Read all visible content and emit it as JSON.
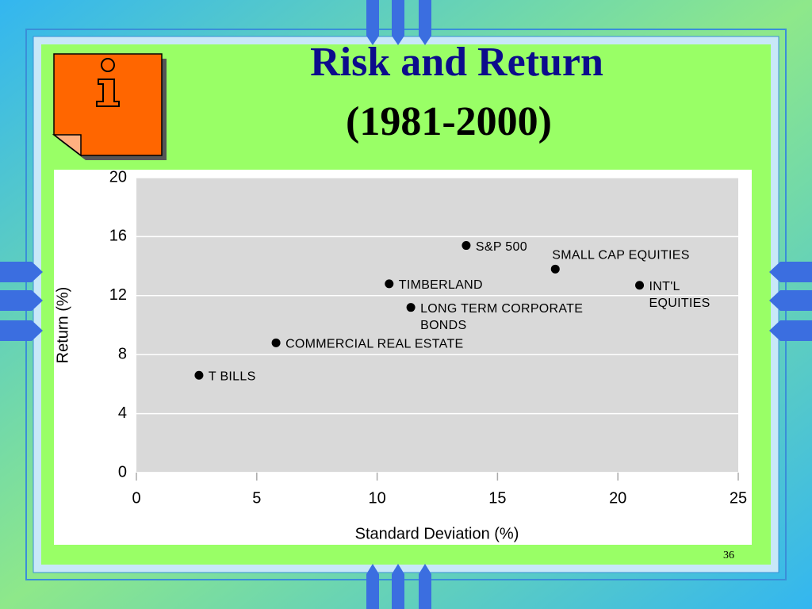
{
  "chart_data": {
    "type": "scatter",
    "title": "Risk and Return",
    "subtitle": "(1981-2000)",
    "x_label": "Standard Deviation (%)",
    "y_label": "Return (%)",
    "labels": [
      [
        "T BILLS"
      ],
      [
        "COMMERCIAL REAL ESTATE"
      ],
      [
        "TIMBERLAND"
      ],
      [
        "LONG TERM CORPORATE",
        "BONDS"
      ],
      [
        "S&P 500"
      ],
      [
        "SMALL CAP EQUITIES"
      ],
      [
        "INT'L",
        "EQUITIES"
      ]
    ],
    "x": [
      2.6,
      5.8,
      10.5,
      11.4,
      13.7,
      17.4,
      20.9
    ],
    "y": [
      6.6,
      8.8,
      12.8,
      11.2,
      15.4,
      13.8,
      12.7
    ],
    "color": "#000000",
    "xlim": [
      0,
      25
    ],
    "xticks": [
      0,
      5,
      10,
      15,
      20,
      25
    ],
    "ylim": [
      0,
      20
    ],
    "yticks": [
      0,
      4,
      8,
      12,
      16,
      20
    ],
    "grid": true
  },
  "slide_number": "36"
}
